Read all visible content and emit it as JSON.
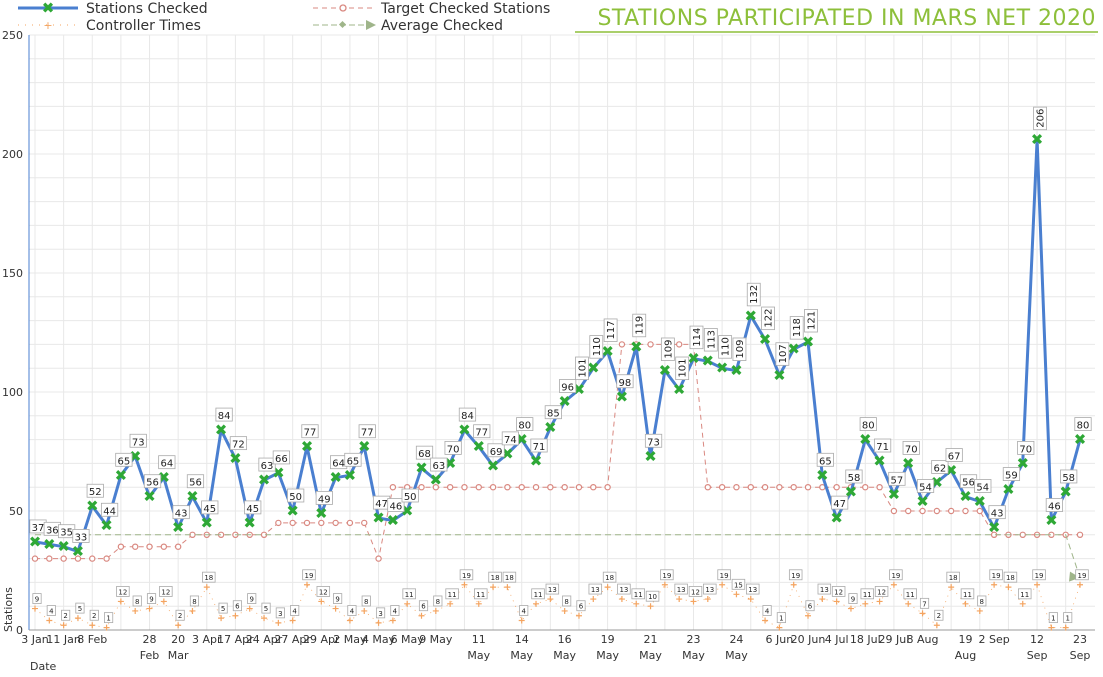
{
  "chart_data": {
    "type": "line",
    "title": "STATIONS PARTICIPATED IN MARS NET 2020",
    "xlabel": "Date",
    "ylabel": "Stations",
    "ylim": [
      0,
      250
    ],
    "y_ticks": [
      0,
      50,
      100,
      150,
      200,
      250
    ],
    "grid": true,
    "legend_position": "top-left",
    "colors": {
      "stations": "#4a7fd0",
      "marker": "#2ea836",
      "target": "#d98880",
      "controller": "#f4a460",
      "average": "#9fb58a",
      "title": "#8dbf3a"
    },
    "x_tick_labels": [
      {
        "idx": 0,
        "text": [
          "3 Jan"
        ]
      },
      {
        "idx": 2,
        "text": [
          "11 Jan"
        ]
      },
      {
        "idx": 4,
        "text": [
          "8 Feb"
        ]
      },
      {
        "idx": 8,
        "text": [
          "28",
          "Feb"
        ]
      },
      {
        "idx": 10,
        "text": [
          "20",
          "Mar"
        ]
      },
      {
        "idx": 12,
        "text": [
          "3 Apr"
        ]
      },
      {
        "idx": 14,
        "text": [
          "17 Apr"
        ]
      },
      {
        "idx": 16,
        "text": [
          "24 Apr"
        ]
      },
      {
        "idx": 18,
        "text": [
          "27 Apr"
        ]
      },
      {
        "idx": 20,
        "text": [
          "29 Apr"
        ]
      },
      {
        "idx": 22,
        "text": [
          "2 May"
        ]
      },
      {
        "idx": 24,
        "text": [
          "4 May"
        ]
      },
      {
        "idx": 26,
        "text": [
          "6 May"
        ]
      },
      {
        "idx": 28,
        "text": [
          "9 May"
        ]
      },
      {
        "idx": 31,
        "text": [
          "11",
          "May"
        ]
      },
      {
        "idx": 34,
        "text": [
          "14",
          "May"
        ]
      },
      {
        "idx": 37,
        "text": [
          "16",
          "May"
        ]
      },
      {
        "idx": 40,
        "text": [
          "19",
          "May"
        ]
      },
      {
        "idx": 43,
        "text": [
          "21",
          "May"
        ]
      },
      {
        "idx": 46,
        "text": [
          "23",
          "May"
        ]
      },
      {
        "idx": 49,
        "text": [
          "24",
          "May"
        ]
      },
      {
        "idx": 52,
        "text": [
          "6 Jun"
        ]
      },
      {
        "idx": 54,
        "text": [
          "20 Jun"
        ]
      },
      {
        "idx": 56,
        "text": [
          "4 Jul"
        ]
      },
      {
        "idx": 58,
        "text": [
          "18 Jul"
        ]
      },
      {
        "idx": 60,
        "text": [
          "29 Jul"
        ]
      },
      {
        "idx": 62,
        "text": [
          "8 Aug"
        ]
      },
      {
        "idx": 65,
        "text": [
          "19",
          "Aug"
        ]
      },
      {
        "idx": 67,
        "text": [
          "2 Sep"
        ]
      },
      {
        "idx": 70,
        "text": [
          "12",
          "Sep"
        ]
      },
      {
        "idx": 73,
        "text": [
          "23",
          "Sep"
        ]
      }
    ],
    "series": [
      {
        "name": "Stations Checked",
        "values": [
          37,
          36,
          35,
          33,
          52,
          44,
          65,
          73,
          56,
          64,
          43,
          56,
          45,
          84,
          72,
          45,
          63,
          66,
          50,
          77,
          49,
          64,
          65,
          77,
          47,
          46,
          50,
          68,
          63,
          70,
          84,
          77,
          69,
          74,
          80,
          71,
          85,
          96,
          101,
          110,
          117,
          98,
          119,
          73,
          109,
          101,
          114,
          113,
          110,
          109,
          132,
          122,
          107,
          118,
          121,
          65,
          47,
          58,
          80,
          71,
          57,
          70,
          54,
          62,
          67,
          56,
          54,
          43,
          59,
          70,
          206,
          46,
          58,
          80
        ]
      },
      {
        "name": "Target Checked Stations",
        "values": [
          30,
          30,
          30,
          30,
          30,
          30,
          35,
          35,
          35,
          35,
          35,
          40,
          40,
          40,
          40,
          40,
          40,
          45,
          45,
          45,
          45,
          45,
          45,
          45,
          30,
          60,
          60,
          60,
          60,
          60,
          60,
          60,
          60,
          60,
          60,
          60,
          60,
          60,
          60,
          60,
          60,
          120,
          120,
          120,
          120,
          120,
          120,
          60,
          60,
          60,
          60,
          60,
          60,
          60,
          60,
          60,
          60,
          60,
          60,
          60,
          50,
          50,
          50,
          50,
          50,
          50,
          50,
          40,
          40,
          40,
          40,
          40,
          40,
          40
        ]
      },
      {
        "name": "Controller Times",
        "values": [
          9,
          4,
          2,
          5,
          2,
          1,
          12,
          8,
          9,
          12,
          2,
          8,
          18,
          5,
          6,
          9,
          5,
          3,
          4,
          19,
          12,
          9,
          4,
          8,
          3,
          4,
          11,
          6,
          8,
          11,
          19,
          11,
          18,
          18,
          4,
          11,
          13,
          8,
          6,
          13,
          18,
          13,
          11,
          10,
          19,
          13,
          12,
          13,
          19,
          15,
          13,
          4,
          1,
          19,
          6,
          13,
          12,
          9,
          11,
          12,
          19,
          11,
          7,
          2,
          18,
          11,
          8,
          19,
          18,
          11,
          19,
          1,
          1,
          19
        ]
      },
      {
        "name": "Average Checked",
        "values": [
          40,
          40,
          40,
          40,
          40,
          40,
          40,
          40,
          40,
          40,
          40,
          40,
          40,
          40,
          40,
          40,
          40,
          40,
          40,
          40,
          40,
          40,
          40,
          40,
          40,
          40,
          40,
          40,
          40,
          40,
          40,
          40,
          40,
          40,
          40,
          40,
          40,
          40,
          40,
          40,
          40,
          40,
          40,
          40,
          40,
          40,
          40,
          40,
          40,
          40,
          40,
          40,
          40,
          40,
          40,
          40,
          40,
          40,
          40,
          40,
          40,
          40,
          40,
          40,
          40,
          40,
          40,
          40,
          40,
          40,
          40,
          40,
          40,
          22
        ]
      }
    ]
  }
}
